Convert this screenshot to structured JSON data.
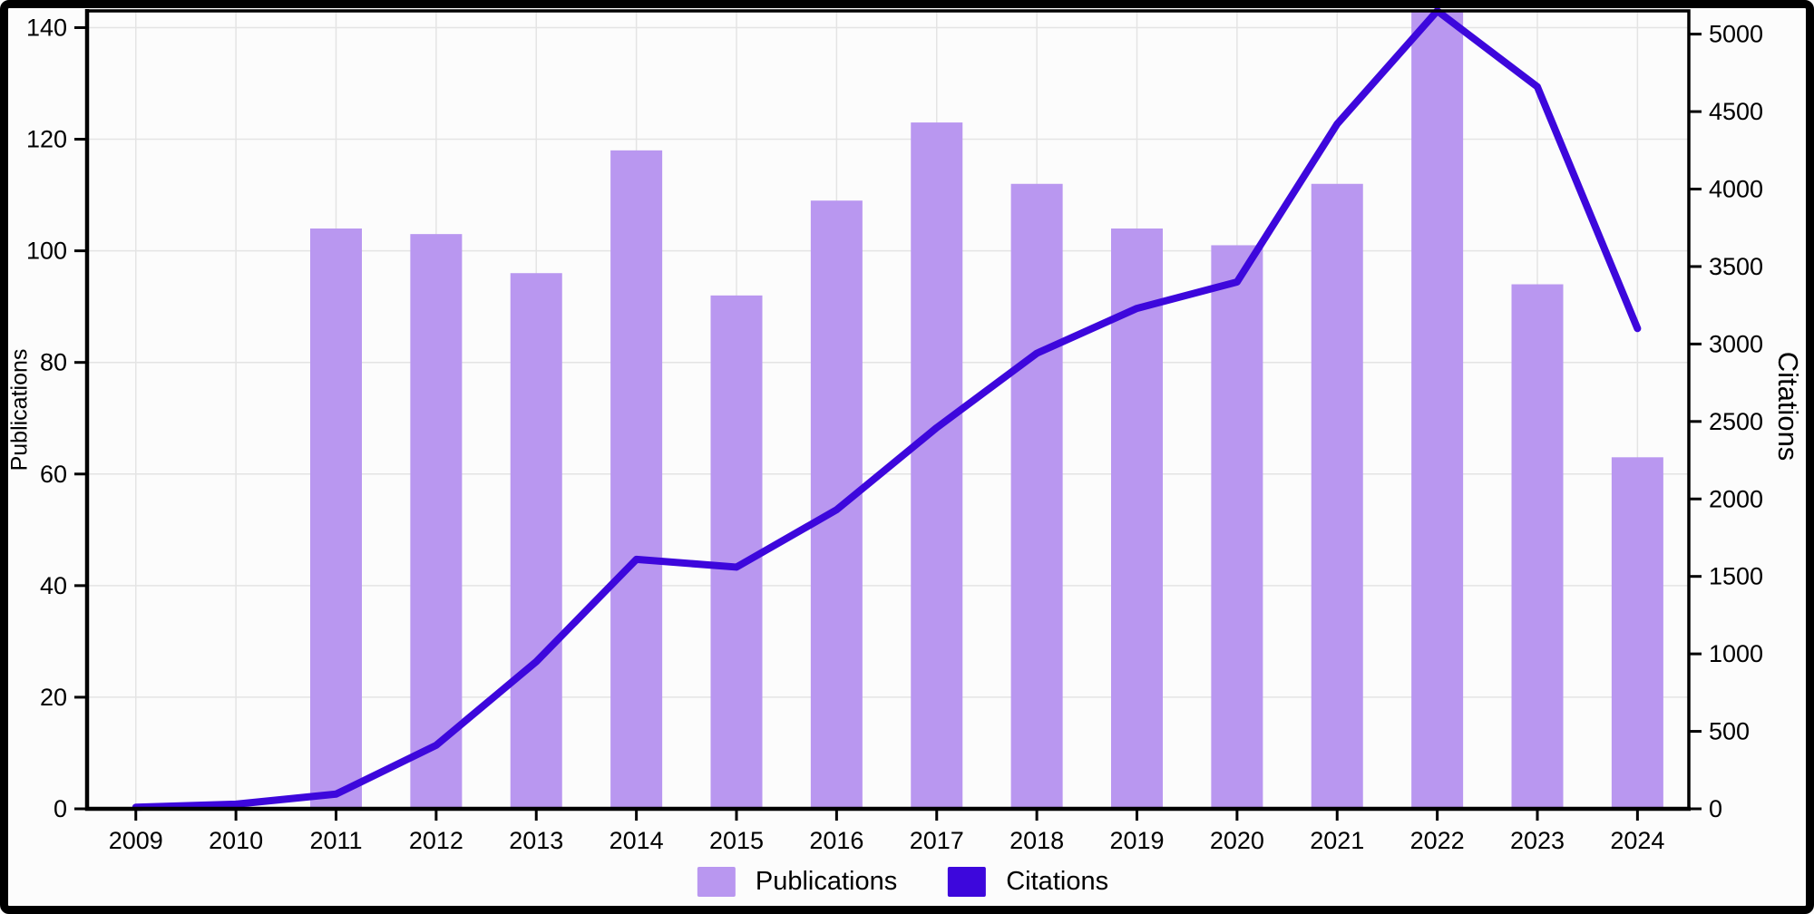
{
  "figure": {
    "background": "#fcfcfc",
    "border_color": "#000000",
    "text_color": "#000000",
    "grid_color": "#e4e4e4"
  },
  "chart_data": {
    "type": "combo-bar-line",
    "title": "",
    "categories": [
      "2009",
      "2010",
      "2011",
      "2012",
      "2013",
      "2014",
      "2015",
      "2016",
      "2017",
      "2018",
      "2019",
      "2020",
      "2021",
      "2022",
      "2023",
      "2024"
    ],
    "series": [
      {
        "name": "Publications",
        "type": "bar",
        "axis": "left",
        "color": "#b997f0",
        "values": [
          0,
          0,
          104,
          103,
          96,
          118,
          92,
          109,
          123,
          112,
          104,
          101,
          112,
          143,
          94,
          63
        ]
      },
      {
        "name": "Citations",
        "type": "line",
        "axis": "right",
        "color": "#3d07dc",
        "values": [
          10,
          30,
          95,
          410,
          950,
          1610,
          1560,
          1930,
          2460,
          2940,
          3230,
          3400,
          4420,
          5150,
          4660,
          3100
        ]
      }
    ],
    "left_axis": {
      "label": "Publications",
      "ticks": [
        0,
        20,
        40,
        60,
        80,
        100,
        120,
        140
      ],
      "range": [
        0,
        143
      ]
    },
    "right_axis": {
      "label": "Citations",
      "ticks": [
        0,
        500,
        1000,
        1500,
        2000,
        2500,
        3000,
        3500,
        4000,
        4500,
        5000
      ],
      "range": [
        0,
        5150
      ]
    },
    "legend": {
      "position": "bottom",
      "items": [
        "Publications",
        "Citations"
      ]
    },
    "grid": true
  }
}
